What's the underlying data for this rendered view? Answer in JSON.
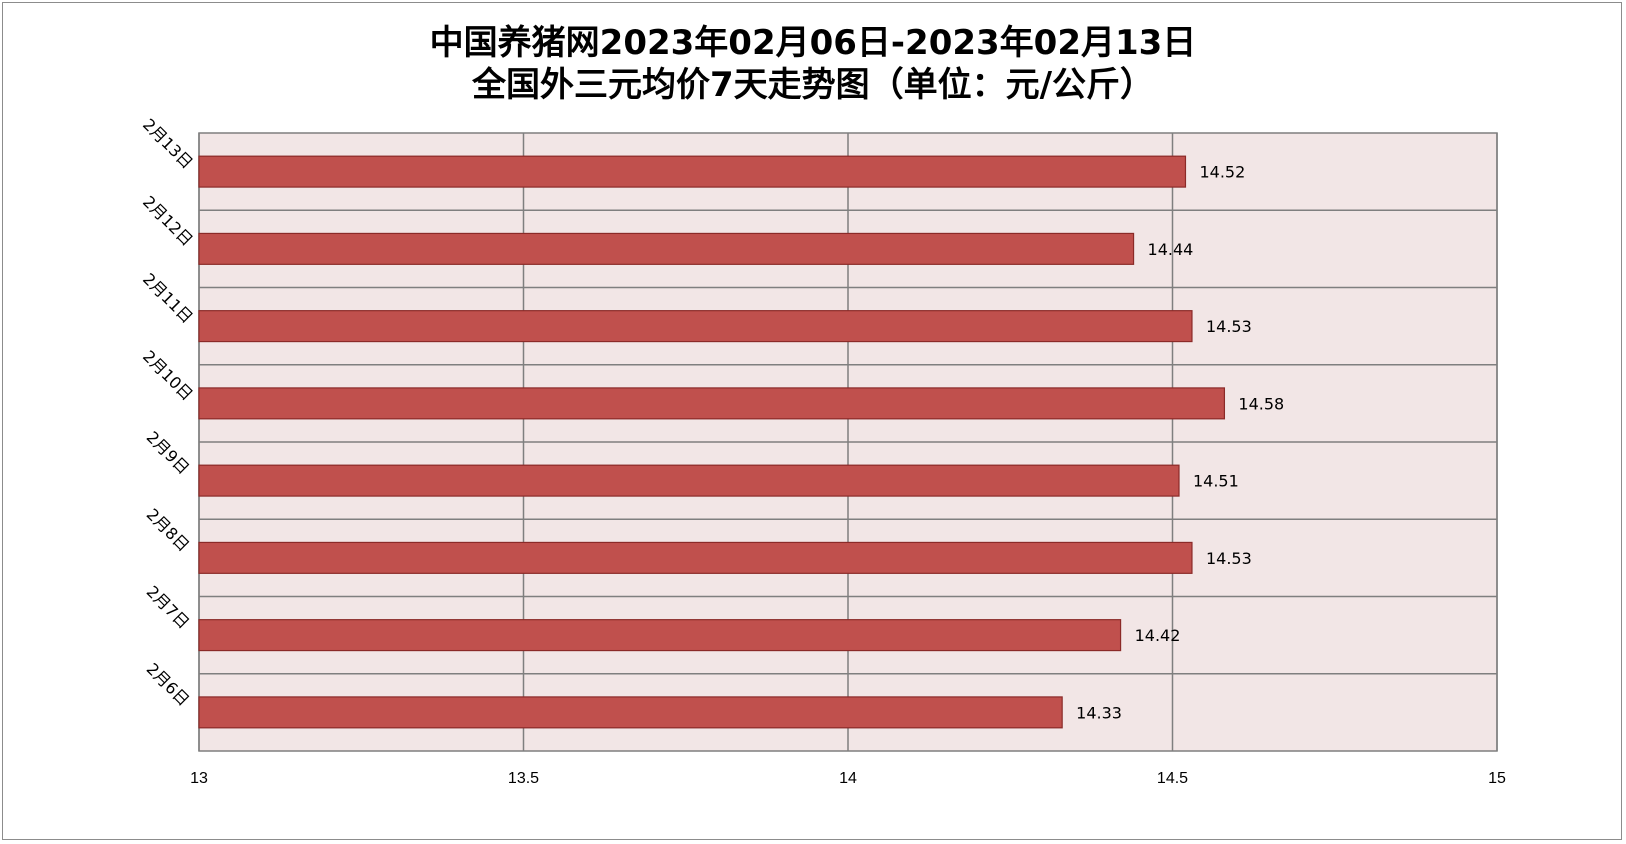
{
  "title_line1": "中国养猪网2023年02月06日-2023年02月13日",
  "title_line2": "全国外三元均价7天走势图（单位：元/公斤）",
  "colors": {
    "bar_fill": "#c0504d",
    "bar_stroke": "#8b2a28",
    "plot_background": "#f2e6e6",
    "grid": "#7f7f7f"
  },
  "chart_data": {
    "type": "bar",
    "orientation": "horizontal",
    "title": "中国养猪网2023年02月06日-2023年02月13日 全国外三元均价7天走势图（单位：元/公斤）",
    "categories": [
      "2月6日",
      "2月7日",
      "2月8日",
      "2月9日",
      "2月10日",
      "2月11日",
      "2月12日",
      "2月13日"
    ],
    "values": [
      14.33,
      14.42,
      14.53,
      14.51,
      14.58,
      14.53,
      14.44,
      14.52
    ],
    "value_labels": [
      "14.33",
      "14.42",
      "14.53",
      "14.51",
      "14.58",
      "14.53",
      "14.44",
      "14.52"
    ],
    "xlim": [
      13,
      15
    ],
    "x_ticks": [
      13,
      13.5,
      14,
      14.5,
      15
    ],
    "x_tick_labels": [
      "13",
      "13.5",
      "14",
      "14.5",
      "15"
    ],
    "grid": true,
    "legend": "none"
  }
}
